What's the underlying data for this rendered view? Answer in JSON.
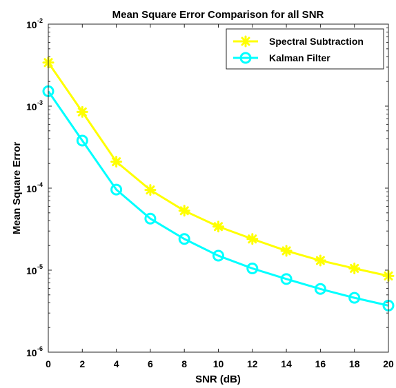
{
  "chart_data": {
    "type": "line",
    "title": "Mean Square Error Comparison for all SNR",
    "xlabel": "SNR (dB)",
    "ylabel": "Mean Square Error",
    "xlim": [
      0,
      20
    ],
    "ylim": [
      1e-06,
      0.01
    ],
    "yscale": "log",
    "x_ticks": [
      "0",
      "2",
      "4",
      "6",
      "8",
      "10",
      "12",
      "14",
      "16",
      "18",
      "20"
    ],
    "y_ticks": [
      {
        "base": "10",
        "exp": "-6"
      },
      {
        "base": "10",
        "exp": "-5"
      },
      {
        "base": "10",
        "exp": "-4"
      },
      {
        "base": "10",
        "exp": "-3"
      },
      {
        "base": "10",
        "exp": "-2"
      }
    ],
    "grid": false,
    "legend_position": "top-right",
    "x": [
      0,
      2,
      4,
      6,
      8,
      10,
      12,
      14,
      16,
      18,
      20
    ],
    "series": [
      {
        "name": "Spectral Subtraction",
        "color": "#ffff00",
        "marker": "asterisk",
        "values": [
          0.0034,
          0.00085,
          0.00021,
          9.5e-05,
          5.3e-05,
          3.4e-05,
          2.4e-05,
          1.72e-05,
          1.31e-05,
          1.05e-05,
          8.5e-06
        ]
      },
      {
        "name": "Kalman Filter",
        "color": "#00ffff",
        "marker": "circle",
        "values": [
          0.00152,
          0.00038,
          9.6e-05,
          4.25e-05,
          2.4e-05,
          1.5e-05,
          1.05e-05,
          7.8e-06,
          5.9e-06,
          4.6e-06,
          3.7e-06
        ]
      }
    ]
  }
}
